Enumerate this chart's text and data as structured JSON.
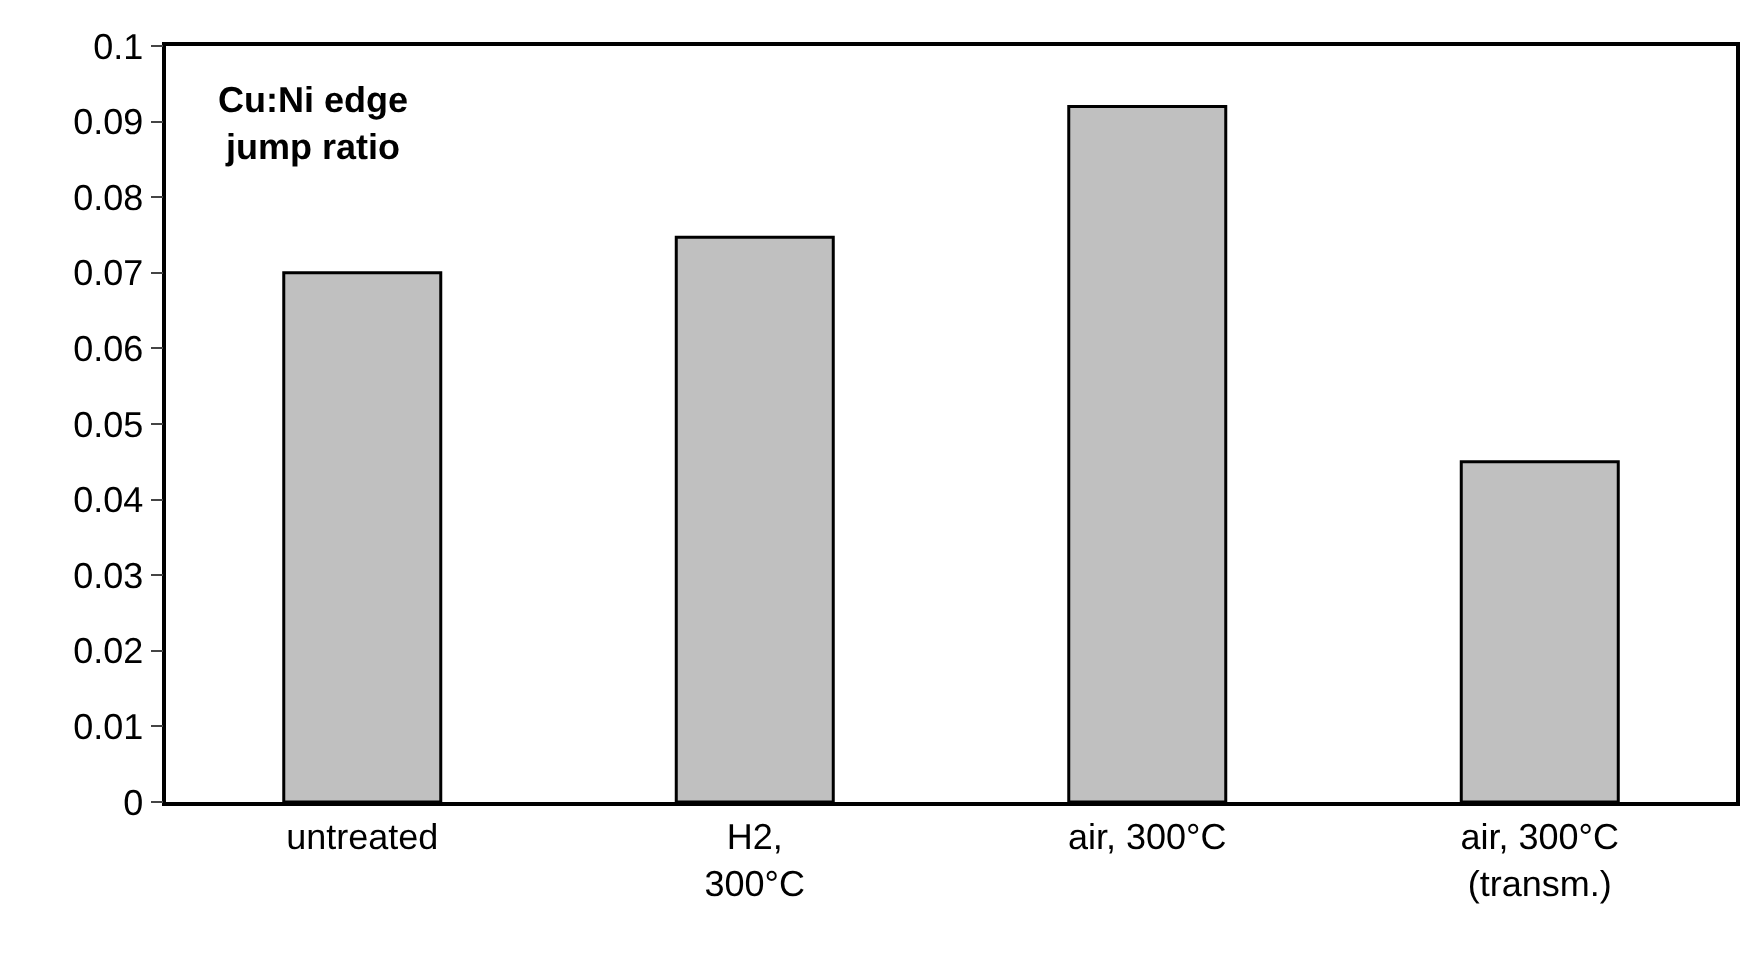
{
  "chart_data": {
    "type": "bar",
    "categories": [
      "untreated",
      "H2,\n300°C",
      "air, 300°C",
      "air, 300°C\n(transm.)"
    ],
    "values": [
      0.07,
      0.0747,
      0.092,
      0.045
    ],
    "color": "#c0c0c0",
    "ylim": [
      0,
      0.1
    ],
    "yticks": [
      0,
      0.01,
      0.02,
      0.03,
      0.04,
      0.05,
      0.06,
      0.07,
      0.08,
      0.09,
      0.1
    ],
    "annotations": [
      "Cu:Ni edge\njump ratio"
    ]
  }
}
